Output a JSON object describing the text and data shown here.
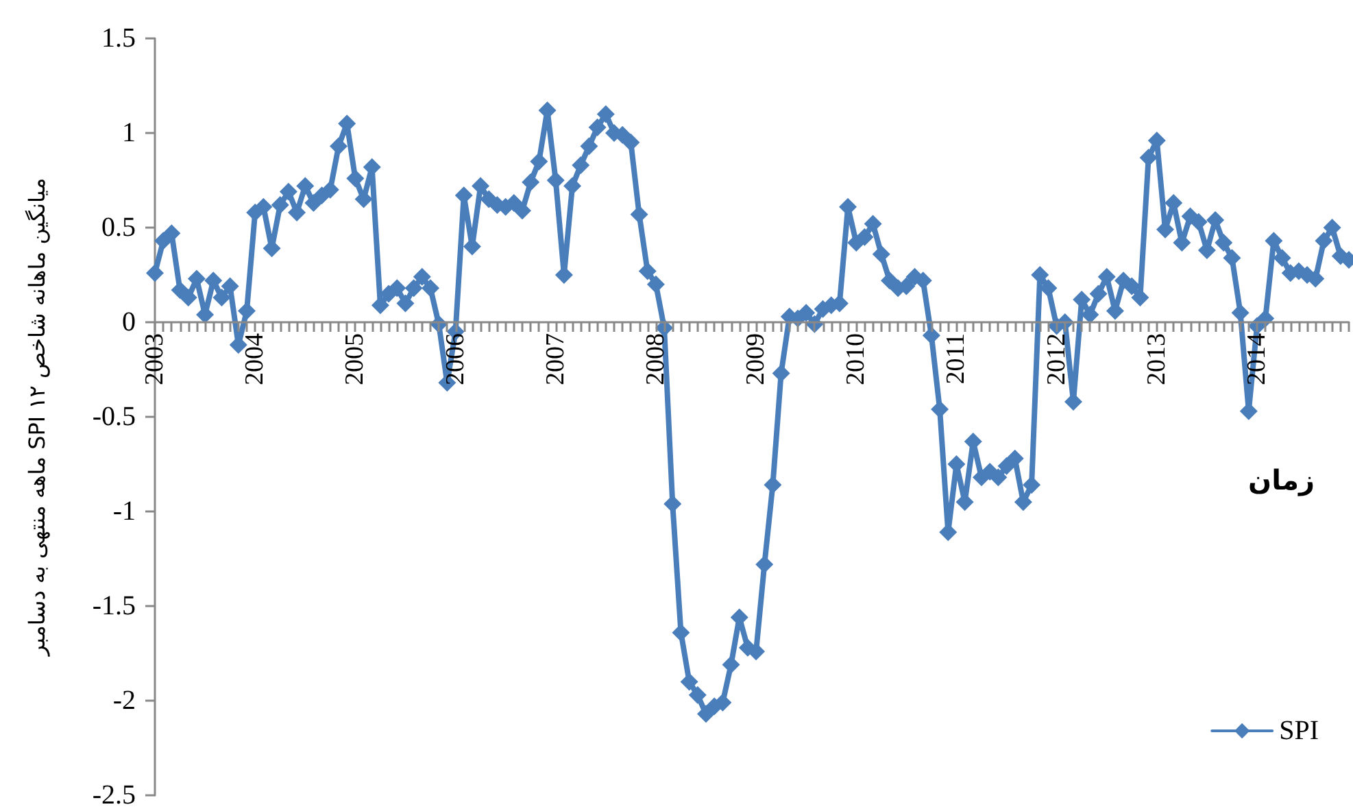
{
  "chart_data": {
    "type": "line",
    "xlabel": "زمان",
    "ylabel": "میانگین ماهانه شاخص SPI ۱۲ ماهه منتهی به دسامبر",
    "categories": [
      "2003",
      null,
      null,
      null,
      null,
      null,
      null,
      null,
      null,
      null,
      null,
      null,
      "2004",
      null,
      null,
      null,
      null,
      null,
      null,
      null,
      null,
      null,
      null,
      null,
      "2005",
      null,
      null,
      null,
      null,
      null,
      null,
      null,
      null,
      null,
      null,
      null,
      "2006",
      null,
      null,
      null,
      null,
      null,
      null,
      null,
      null,
      null,
      null,
      null,
      "2007",
      null,
      null,
      null,
      null,
      null,
      null,
      null,
      null,
      null,
      null,
      null,
      "2008",
      null,
      null,
      null,
      null,
      null,
      null,
      null,
      null,
      null,
      null,
      null,
      "2009",
      null,
      null,
      null,
      null,
      null,
      null,
      null,
      null,
      null,
      null,
      null,
      "2010",
      null,
      null,
      null,
      null,
      null,
      null,
      null,
      null,
      null,
      null,
      null,
      "2011",
      null,
      null,
      null,
      null,
      null,
      null,
      null,
      null,
      null,
      null,
      null,
      "2012",
      null,
      null,
      null,
      null,
      null,
      null,
      null,
      null,
      null,
      null,
      null,
      "2013",
      null,
      null,
      null,
      null,
      null,
      null,
      null,
      null,
      null,
      null,
      null,
      "2014",
      null,
      null,
      null,
      null,
      null,
      null,
      null,
      null,
      null,
      null,
      null
    ],
    "series": [
      {
        "name": "SPI",
        "color": "#4a7ebb",
        "values": [
          0.26,
          0.43,
          0.47,
          0.17,
          0.13,
          0.23,
          0.04,
          0.22,
          0.13,
          0.19,
          -0.12,
          0.06,
          0.58,
          0.61,
          0.39,
          0.62,
          0.69,
          0.58,
          0.72,
          0.63,
          0.67,
          0.7,
          0.93,
          1.05,
          0.76,
          0.65,
          0.82,
          0.09,
          0.15,
          0.18,
          0.1,
          0.18,
          0.24,
          0.18,
          -0.01,
          -0.32,
          -0.05,
          0.67,
          0.4,
          0.72,
          0.65,
          0.62,
          0.61,
          0.63,
          0.59,
          0.74,
          0.85,
          1.12,
          0.75,
          0.25,
          0.72,
          0.83,
          0.93,
          1.03,
          1.1,
          1.0,
          0.99,
          0.95,
          0.57,
          0.27,
          0.2,
          -0.03,
          -0.96,
          -1.64,
          -1.9,
          -1.97,
          -2.07,
          -2.03,
          -2.01,
          -1.81,
          -1.56,
          -1.72,
          -1.74,
          -1.28,
          -0.86,
          -0.27,
          0.03,
          0.02,
          0.05,
          -0.01,
          0.07,
          0.09,
          0.1,
          0.61,
          0.42,
          0.45,
          0.52,
          0.36,
          0.22,
          0.18,
          0.19,
          0.24,
          0.22,
          -0.07,
          -0.46,
          -1.11,
          -0.75,
          -0.95,
          -0.63,
          -0.82,
          -0.79,
          -0.82,
          -0.76,
          -0.72,
          -0.95,
          -0.86,
          0.25,
          0.18,
          -0.02,
          0.0,
          -0.42,
          0.12,
          0.04,
          0.15,
          0.24,
          0.06,
          0.22,
          0.19,
          0.13,
          0.87,
          0.96,
          0.49,
          0.63,
          0.42,
          0.56,
          0.53,
          0.38,
          0.54,
          0.42,
          0.34,
          0.05,
          -0.47,
          -0.02,
          0.02,
          0.43,
          0.34,
          0.26,
          0.27,
          0.25,
          0.23,
          0.43,
          0.5,
          0.35,
          0.33
        ]
      }
    ],
    "ylim": [
      -2.5,
      1.5
    ],
    "yticks": [
      -2.5,
      -2,
      -1.5,
      -1,
      -0.5,
      0,
      0.5,
      1,
      1.5
    ],
    "grid": false,
    "legend": "bottom right",
    "marker": "diamond",
    "line_style": "solid"
  }
}
